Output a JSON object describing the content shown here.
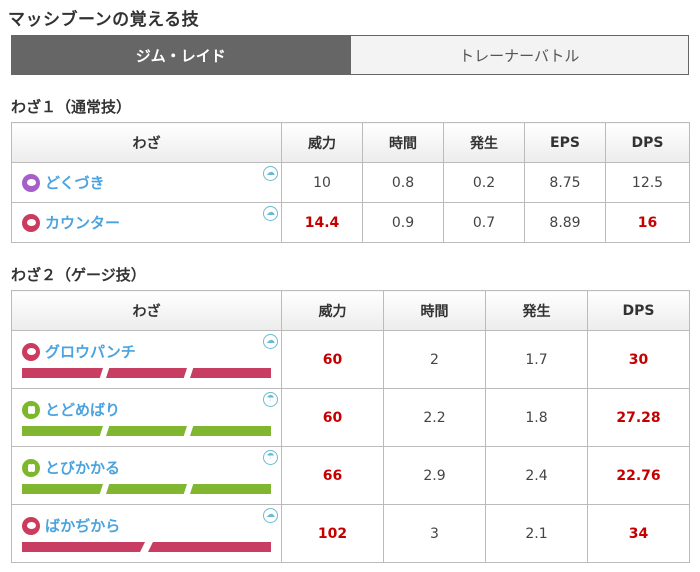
{
  "title": "マッシブーンの覚える技",
  "tabs": [
    {
      "label": "ジム・レイド",
      "active": true
    },
    {
      "label": "トレーナーバトル",
      "active": false
    }
  ],
  "fast": {
    "title": "わざ１（通常技）",
    "headers": [
      "わざ",
      "威力",
      "時間",
      "発生",
      "EPS",
      "DPS"
    ],
    "rows": [
      {
        "name": "どくづき",
        "type": "poison",
        "weather_icon": "cloudy-icon",
        "power": "10",
        "time": "0.8",
        "startup": "0.2",
        "eps": "8.75",
        "dps": "12.5"
      },
      {
        "name": "カウンター",
        "type": "fighting",
        "weather_icon": "cloudy-icon",
        "power": "14.4",
        "time": "0.9",
        "startup": "0.7",
        "eps": "8.89",
        "dps": "16"
      }
    ]
  },
  "charged": {
    "title": "わざ２（ゲージ技）",
    "headers": [
      "わざ",
      "威力",
      "時間",
      "発生",
      "DPS"
    ],
    "rows": [
      {
        "name": "グロウパンチ",
        "type": "fighting",
        "weather_icon": "cloudy-icon",
        "bars": 3,
        "power": "60",
        "time": "2",
        "startup": "1.7",
        "dps": "30"
      },
      {
        "name": "とどめばり",
        "type": "grass",
        "weather_icon": "sunny-icon",
        "bars": 3,
        "power": "60",
        "time": "2.2",
        "startup": "1.8",
        "dps": "27.28"
      },
      {
        "name": "とびかかる",
        "type": "grass",
        "weather_icon": "sunny-icon",
        "bars": 3,
        "power": "66",
        "time": "2.9",
        "startup": "2.4",
        "dps": "22.76"
      },
      {
        "name": "ばかぢから",
        "type": "fighting",
        "weather_icon": "cloudy-icon",
        "bars": 2,
        "power": "102",
        "time": "3",
        "startup": "2.1",
        "dps": "34"
      }
    ]
  },
  "colors": {
    "tab_active": "#666666",
    "move_link": "#4aa3df",
    "highlight": "#c40000",
    "poison": "#a45fc9",
    "fighting": "#cc3b5d",
    "grass": "#7cb82a"
  }
}
